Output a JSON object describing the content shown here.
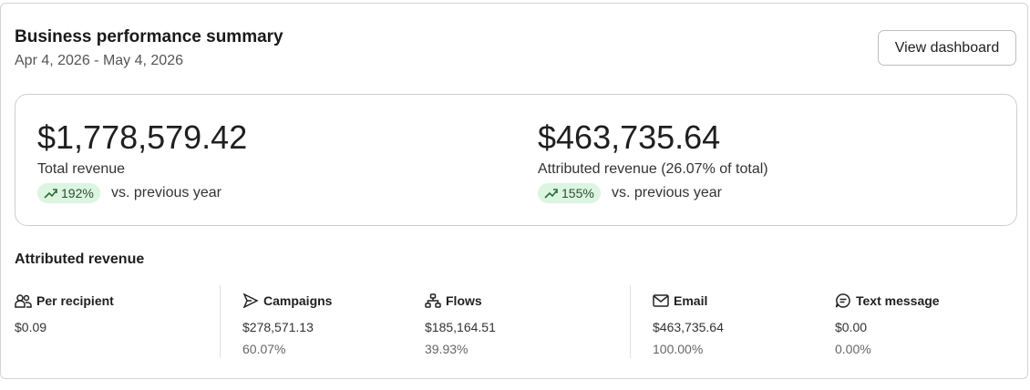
{
  "header": {
    "title": "Business performance summary",
    "date_range": "Apr 4, 2026 - May 4, 2026",
    "button": "View dashboard"
  },
  "summary": [
    {
      "value": "$1,778,579.42",
      "label": "Total revenue",
      "change": "192%",
      "comparison": "vs. previous year"
    },
    {
      "value": "$463,735.64",
      "label": "Attributed revenue (26.07% of total)",
      "change": "155%",
      "comparison": "vs. previous year"
    }
  ],
  "attributed": {
    "title": "Attributed revenue",
    "metrics": [
      {
        "label": "Per recipient",
        "value": "$0.09"
      },
      {
        "label": "Campaigns",
        "value": "$278,571.13",
        "share": "60.07%"
      },
      {
        "label": "Flows",
        "value": "$185,164.51",
        "share": "39.93%"
      },
      {
        "label": "Email",
        "value": "$463,735.64",
        "share": "100.00%"
      },
      {
        "label": "Text message",
        "value": "$0.00",
        "share": "0.00%"
      }
    ]
  }
}
